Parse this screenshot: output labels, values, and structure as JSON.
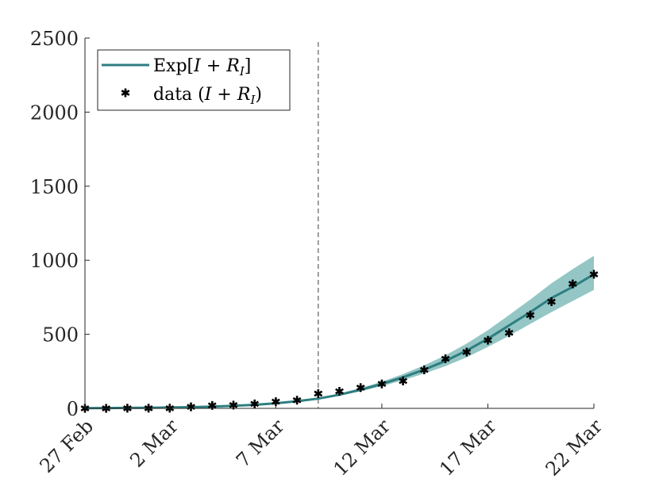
{
  "chart_data": {
    "type": "line",
    "title": "",
    "xlabel": "",
    "ylabel": "",
    "ylim": [
      0,
      2500
    ],
    "yticks": [
      0,
      500,
      1000,
      1500,
      2000,
      2500
    ],
    "xticks": [
      {
        "day": 0,
        "label": "27 Feb"
      },
      {
        "day": 4,
        "label": "2 Mar"
      },
      {
        "day": 9,
        "label": "7 Mar"
      },
      {
        "day": 14,
        "label": "12 Mar"
      },
      {
        "day": 19,
        "label": "17 Mar"
      },
      {
        "day": 24,
        "label": "22 Mar"
      }
    ],
    "xlim": [
      0,
      24
    ],
    "vline_day": 11,
    "colors": {
      "line": "#2e7e80",
      "band": "#5aa7a6",
      "markers": "#000000",
      "axis": "#262626",
      "vline": "#808080"
    },
    "legend": {
      "position": "top-left",
      "entries": [
        {
          "pre": "Exp[",
          "it1": "I",
          "mid": " + ",
          "it2": "R",
          "sub": "I",
          "post": "]"
        },
        {
          "pre": "data (",
          "it1": "I",
          "mid": " + ",
          "it2": "R",
          "sub": "I",
          "post": ")"
        }
      ]
    },
    "series": [
      {
        "name": "Exp[I + R_I]",
        "kind": "line_with_band",
        "x": [
          0,
          1,
          2,
          3,
          4,
          5,
          6,
          7,
          8,
          9,
          10,
          11,
          12,
          13,
          14,
          15,
          16,
          17,
          18,
          19,
          20,
          21,
          22,
          23,
          24
        ],
        "values": [
          1,
          2,
          3,
          4,
          6,
          8,
          12,
          17,
          24,
          34,
          48,
          66,
          92,
          125,
          165,
          210,
          262,
          320,
          390,
          470,
          560,
          650,
          745,
          820,
          905
        ],
        "lower": [
          1,
          2,
          3,
          4,
          6,
          8,
          12,
          17,
          23,
          32,
          45,
          62,
          86,
          115,
          150,
          190,
          235,
          285,
          345,
          415,
          490,
          570,
          650,
          725,
          800
        ],
        "upper": [
          1,
          2,
          3,
          4,
          6,
          8,
          12,
          17,
          25,
          36,
          52,
          72,
          100,
          137,
          180,
          232,
          290,
          358,
          438,
          528,
          630,
          735,
          845,
          940,
          1030
        ]
      },
      {
        "name": "data (I + R_I)",
        "kind": "markers",
        "x": [
          0,
          1,
          2,
          3,
          4,
          5,
          6,
          7,
          8,
          9,
          10,
          11,
          12,
          13,
          14,
          15,
          16,
          17,
          18,
          19,
          20,
          21,
          22,
          23,
          24
        ],
        "values": [
          0,
          0,
          1,
          1,
          1,
          10,
          20,
          22,
          30,
          45,
          55,
          100,
          115,
          140,
          165,
          185,
          260,
          335,
          380,
          460,
          510,
          630,
          720,
          840,
          905
        ]
      }
    ]
  }
}
